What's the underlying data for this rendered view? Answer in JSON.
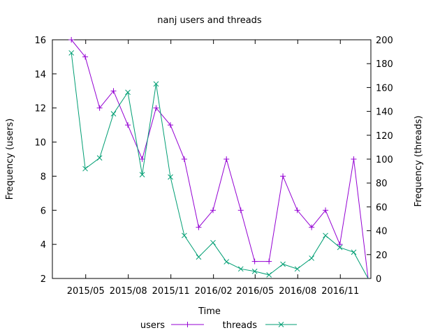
{
  "chart_data": {
    "type": "line",
    "title": "nanj users and threads",
    "xlabel": "Time",
    "ylabel_left": "Frequency (users)",
    "ylabel_right": "Frequency (threads)",
    "ylim_left": [
      2,
      16
    ],
    "ylim_right": [
      0,
      200
    ],
    "yticks_left": [
      2,
      4,
      6,
      8,
      10,
      12,
      14,
      16
    ],
    "yticks_right": [
      0,
      20,
      40,
      60,
      80,
      100,
      120,
      140,
      160,
      180,
      200
    ],
    "xlim": [
      "2015-02-18",
      "2017-01-06"
    ],
    "xticks": [
      {
        "date": "2015-05-01",
        "label": "2015/05"
      },
      {
        "date": "2015-08-01",
        "label": "2015/08"
      },
      {
        "date": "2015-11-01",
        "label": "2015/11"
      },
      {
        "date": "2016-02-01",
        "label": "2016/02"
      },
      {
        "date": "2016-05-01",
        "label": "2016/05"
      },
      {
        "date": "2016-08-01",
        "label": "2016/08"
      },
      {
        "date": "2016-11-01",
        "label": "2016/11"
      }
    ],
    "x": [
      "2015-03-31",
      "2015-04-30",
      "2015-05-31",
      "2015-06-30",
      "2015-07-31",
      "2015-08-31",
      "2015-09-30",
      "2015-10-31",
      "2015-11-30",
      "2015-12-31",
      "2016-01-31",
      "2016-02-29",
      "2016-03-31",
      "2016-04-30",
      "2016-05-31",
      "2016-06-30",
      "2016-07-31",
      "2016-08-31",
      "2016-09-30",
      "2016-10-31",
      "2016-11-30",
      "2016-12-31"
    ],
    "series": [
      {
        "name": "users",
        "axis": "left",
        "color": "#9400d3",
        "marker": "+",
        "values": [
          16,
          15,
          12,
          13,
          11,
          9,
          12,
          11,
          9,
          5,
          6,
          9,
          6,
          3,
          3,
          8,
          6,
          5,
          6,
          4,
          9,
          0
        ]
      },
      {
        "name": "threads",
        "axis": "right",
        "color": "#009e73",
        "marker": "x",
        "values": [
          189,
          92,
          101,
          138,
          156,
          87,
          163,
          85,
          36,
          18,
          30,
          14,
          8,
          6,
          3,
          12,
          8,
          17,
          36,
          26,
          22,
          0
        ]
      }
    ],
    "legend": "bottom",
    "grid": false
  }
}
